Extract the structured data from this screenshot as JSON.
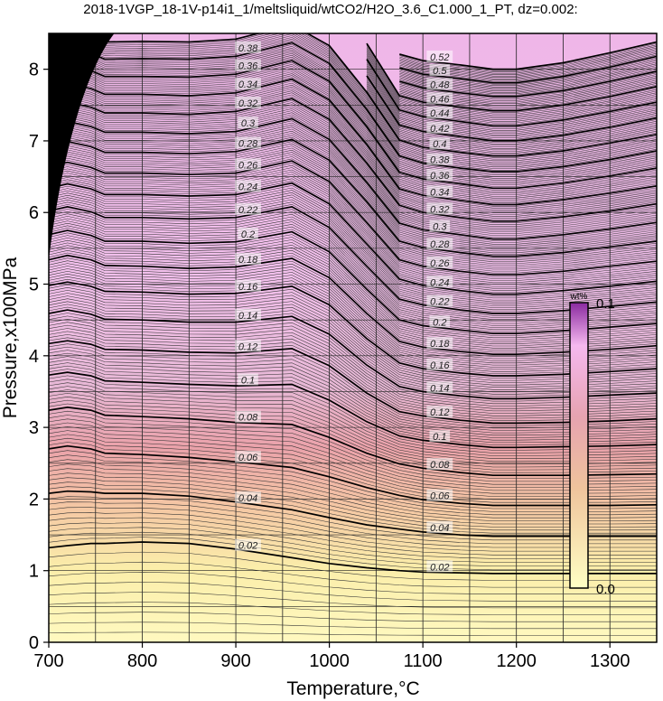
{
  "chart_data": {
    "type": "contour",
    "title": "2018-1VGP_18-1V-p14i1_1/meltsliquid/wtCO2/H2O_3.6_C1.000_1_PT, dz=0.002:",
    "xlabel": "Temperature,°C",
    "ylabel": "Pressure,x100MPa",
    "xlim": [
      700,
      1350
    ],
    "ylim": [
      0,
      8.5
    ],
    "xticks": [
      700,
      800,
      900,
      1000,
      1100,
      1200,
      1300
    ],
    "yticks": [
      0,
      1,
      2,
      3,
      4,
      5,
      6,
      7,
      8
    ],
    "grid": true,
    "z_variable": "wt%",
    "colorbar": {
      "label": "wt%",
      "min": "0.0",
      "max": "0.1",
      "colors": [
        "#ffffc4",
        "#e8a3a8",
        "#f6b8f2",
        "#8a2aa0"
      ]
    },
    "labeled_levels": [
      0.02,
      0.04,
      0.06,
      0.08,
      0.1,
      0.12,
      0.14,
      0.16,
      0.18,
      0.2,
      0.22,
      0.24,
      0.26,
      0.28,
      0.3,
      0.32,
      0.34,
      0.36,
      0.38,
      0.4,
      0.42,
      0.44,
      0.46,
      0.48,
      0.5,
      0.52
    ],
    "contour_pressure_profile": {
      "temperature": [
        700,
        720,
        745,
        760,
        800,
        850,
        900,
        960,
        1000,
        1040,
        1075,
        1100,
        1140,
        1175,
        1200,
        1250,
        1300,
        1350
      ],
      "levels": [
        {
          "wt": 0.02,
          "p": [
            1.32,
            1.35,
            1.38,
            1.38,
            1.4,
            1.38,
            1.3,
            1.18,
            1.1,
            1.04,
            1.0,
            0.98,
            0.97,
            0.96,
            0.96,
            0.96,
            0.96,
            0.96
          ]
        },
        {
          "wt": 0.04,
          "p": [
            2.08,
            2.11,
            2.1,
            2.08,
            2.08,
            2.04,
            1.96,
            1.85,
            1.74,
            1.64,
            1.58,
            1.54,
            1.5,
            1.48,
            1.48,
            1.48,
            1.48,
            1.48
          ]
        },
        {
          "wt": 0.06,
          "p": [
            2.7,
            2.74,
            2.7,
            2.64,
            2.62,
            2.58,
            2.52,
            2.44,
            2.31,
            2.16,
            2.05,
            1.99,
            1.94,
            1.91,
            1.91,
            1.91,
            1.91,
            1.92
          ]
        },
        {
          "wt": 0.08,
          "p": [
            3.24,
            3.28,
            3.24,
            3.17,
            3.15,
            3.12,
            3.07,
            3.04,
            2.86,
            2.64,
            2.49,
            2.43,
            2.37,
            2.33,
            2.33,
            2.33,
            2.34,
            2.35
          ]
        },
        {
          "wt": 0.1,
          "p": [
            3.73,
            3.77,
            3.72,
            3.65,
            3.63,
            3.6,
            3.58,
            3.6,
            3.38,
            3.08,
            2.88,
            2.82,
            2.76,
            2.72,
            2.72,
            2.73,
            2.74,
            2.76
          ]
        },
        {
          "wt": 0.12,
          "p": [
            4.17,
            4.21,
            4.16,
            4.09,
            4.08,
            4.05,
            4.04,
            4.1,
            3.86,
            3.48,
            3.22,
            3.16,
            3.1,
            3.06,
            3.06,
            3.07,
            3.09,
            3.12
          ]
        },
        {
          "wt": 0.14,
          "p": [
            4.59,
            4.64,
            4.58,
            4.51,
            4.5,
            4.47,
            4.47,
            4.55,
            4.3,
            3.87,
            3.57,
            3.5,
            3.44,
            3.4,
            3.4,
            3.42,
            3.45,
            3.48
          ]
        },
        {
          "wt": 0.16,
          "p": [
            4.98,
            5.03,
            4.97,
            4.9,
            4.89,
            4.86,
            4.87,
            4.97,
            4.71,
            4.24,
            3.9,
            3.82,
            3.76,
            3.72,
            3.72,
            3.74,
            3.78,
            3.82
          ]
        },
        {
          "wt": 0.18,
          "p": [
            5.34,
            5.4,
            5.34,
            5.26,
            5.25,
            5.22,
            5.24,
            5.36,
            5.09,
            4.59,
            4.2,
            4.12,
            4.06,
            4.02,
            4.02,
            4.05,
            4.09,
            4.14
          ]
        },
        {
          "wt": 0.2,
          "p": [
            5.69,
            5.75,
            5.68,
            5.6,
            5.6,
            5.57,
            5.59,
            5.73,
            5.45,
            4.93,
            4.5,
            4.42,
            4.36,
            4.31,
            4.31,
            4.35,
            4.4,
            4.45
          ]
        },
        {
          "wt": 0.22,
          "p": [
            6.02,
            6.08,
            6.01,
            5.93,
            5.93,
            5.91,
            5.93,
            6.08,
            5.79,
            5.25,
            4.79,
            4.71,
            4.64,
            4.59,
            4.59,
            4.63,
            4.69,
            4.75
          ]
        },
        {
          "wt": 0.24,
          "p": [
            6.34,
            6.4,
            6.33,
            6.25,
            6.25,
            6.23,
            6.25,
            6.41,
            6.12,
            5.56,
            5.07,
            4.98,
            4.91,
            4.86,
            4.86,
            4.91,
            4.97,
            5.04
          ]
        },
        {
          "wt": 0.26,
          "p": [
            6.64,
            6.7,
            6.63,
            6.55,
            6.55,
            6.53,
            6.55,
            6.72,
            6.43,
            5.86,
            5.34,
            5.25,
            5.18,
            5.13,
            5.13,
            5.18,
            5.25,
            5.32
          ]
        },
        {
          "wt": 0.28,
          "p": [
            6.93,
            6.99,
            6.92,
            6.84,
            6.84,
            6.82,
            6.85,
            7.02,
            6.73,
            6.15,
            5.6,
            5.51,
            5.44,
            5.39,
            5.39,
            5.44,
            5.52,
            5.6
          ]
        },
        {
          "wt": 0.3,
          "p": [
            7.21,
            7.27,
            7.2,
            7.12,
            7.12,
            7.1,
            7.13,
            7.31,
            7.02,
            6.42,
            5.85,
            5.76,
            5.69,
            5.63,
            5.63,
            5.69,
            5.77,
            5.86
          ]
        },
        {
          "wt": 0.32,
          "p": [
            7.48,
            7.54,
            7.47,
            7.39,
            7.39,
            7.37,
            7.41,
            7.59,
            7.3,
            6.69,
            6.1,
            6.0,
            5.93,
            5.88,
            5.88,
            5.94,
            6.02,
            6.12
          ]
        },
        {
          "wt": 0.34,
          "p": [
            7.74,
            7.8,
            7.73,
            7.65,
            7.65,
            7.63,
            7.67,
            7.86,
            7.57,
            6.95,
            6.33,
            6.24,
            6.17,
            6.11,
            6.11,
            6.18,
            6.27,
            6.37
          ]
        },
        {
          "wt": 0.36,
          "p": [
            7.99,
            8.05,
            7.98,
            7.9,
            7.9,
            7.89,
            7.93,
            8.12,
            7.83,
            7.2,
            6.56,
            6.47,
            6.4,
            6.34,
            6.34,
            6.41,
            6.51,
            6.62
          ]
        },
        {
          "wt": 0.38,
          "p": [
            8.23,
            8.29,
            8.22,
            8.14,
            8.15,
            8.14,
            8.18,
            8.37,
            8.08,
            7.44,
            6.79,
            6.69,
            6.62,
            6.57,
            6.57,
            6.64,
            6.74,
            6.86
          ]
        },
        {
          "wt": 0.4,
          "p": [
            8.46,
            8.52,
            8.45,
            8.38,
            8.39,
            8.38,
            8.42,
            8.62,
            8.33,
            7.68,
            7.01,
            6.91,
            6.84,
            6.79,
            6.79,
            6.86,
            6.97,
            7.09
          ]
        },
        {
          "wt": 0.42,
          "p": [
            null,
            null,
            null,
            null,
            null,
            null,
            null,
            null,
            null,
            7.91,
            7.22,
            7.13,
            7.06,
            7.0,
            7.0,
            7.08,
            7.19,
            7.32
          ]
        },
        {
          "wt": 0.44,
          "p": [
            null,
            null,
            null,
            null,
            null,
            null,
            null,
            null,
            null,
            8.14,
            7.43,
            7.34,
            7.27,
            7.21,
            7.21,
            7.29,
            7.41,
            7.54
          ]
        },
        {
          "wt": 0.46,
          "p": [
            null,
            null,
            null,
            null,
            null,
            null,
            null,
            null,
            null,
            8.36,
            7.63,
            7.54,
            7.47,
            7.42,
            7.42,
            7.5,
            7.62,
            7.76
          ]
        },
        {
          "wt": 0.48,
          "p": [
            null,
            null,
            null,
            null,
            null,
            null,
            null,
            null,
            null,
            null,
            7.83,
            7.74,
            7.67,
            7.62,
            7.62,
            7.7,
            7.83,
            7.97
          ]
        },
        {
          "wt": 0.5,
          "p": [
            null,
            null,
            null,
            null,
            null,
            null,
            null,
            null,
            null,
            null,
            8.02,
            7.93,
            7.87,
            7.81,
            7.81,
            7.9,
            8.03,
            8.18
          ]
        },
        {
          "wt": 0.52,
          "p": [
            null,
            null,
            null,
            null,
            null,
            null,
            null,
            null,
            null,
            null,
            8.21,
            8.12,
            8.06,
            8.0,
            8.0,
            8.09,
            8.23,
            8.38
          ]
        }
      ]
    },
    "saturated_region_color": "#000000",
    "label_positions_note": ""
  }
}
